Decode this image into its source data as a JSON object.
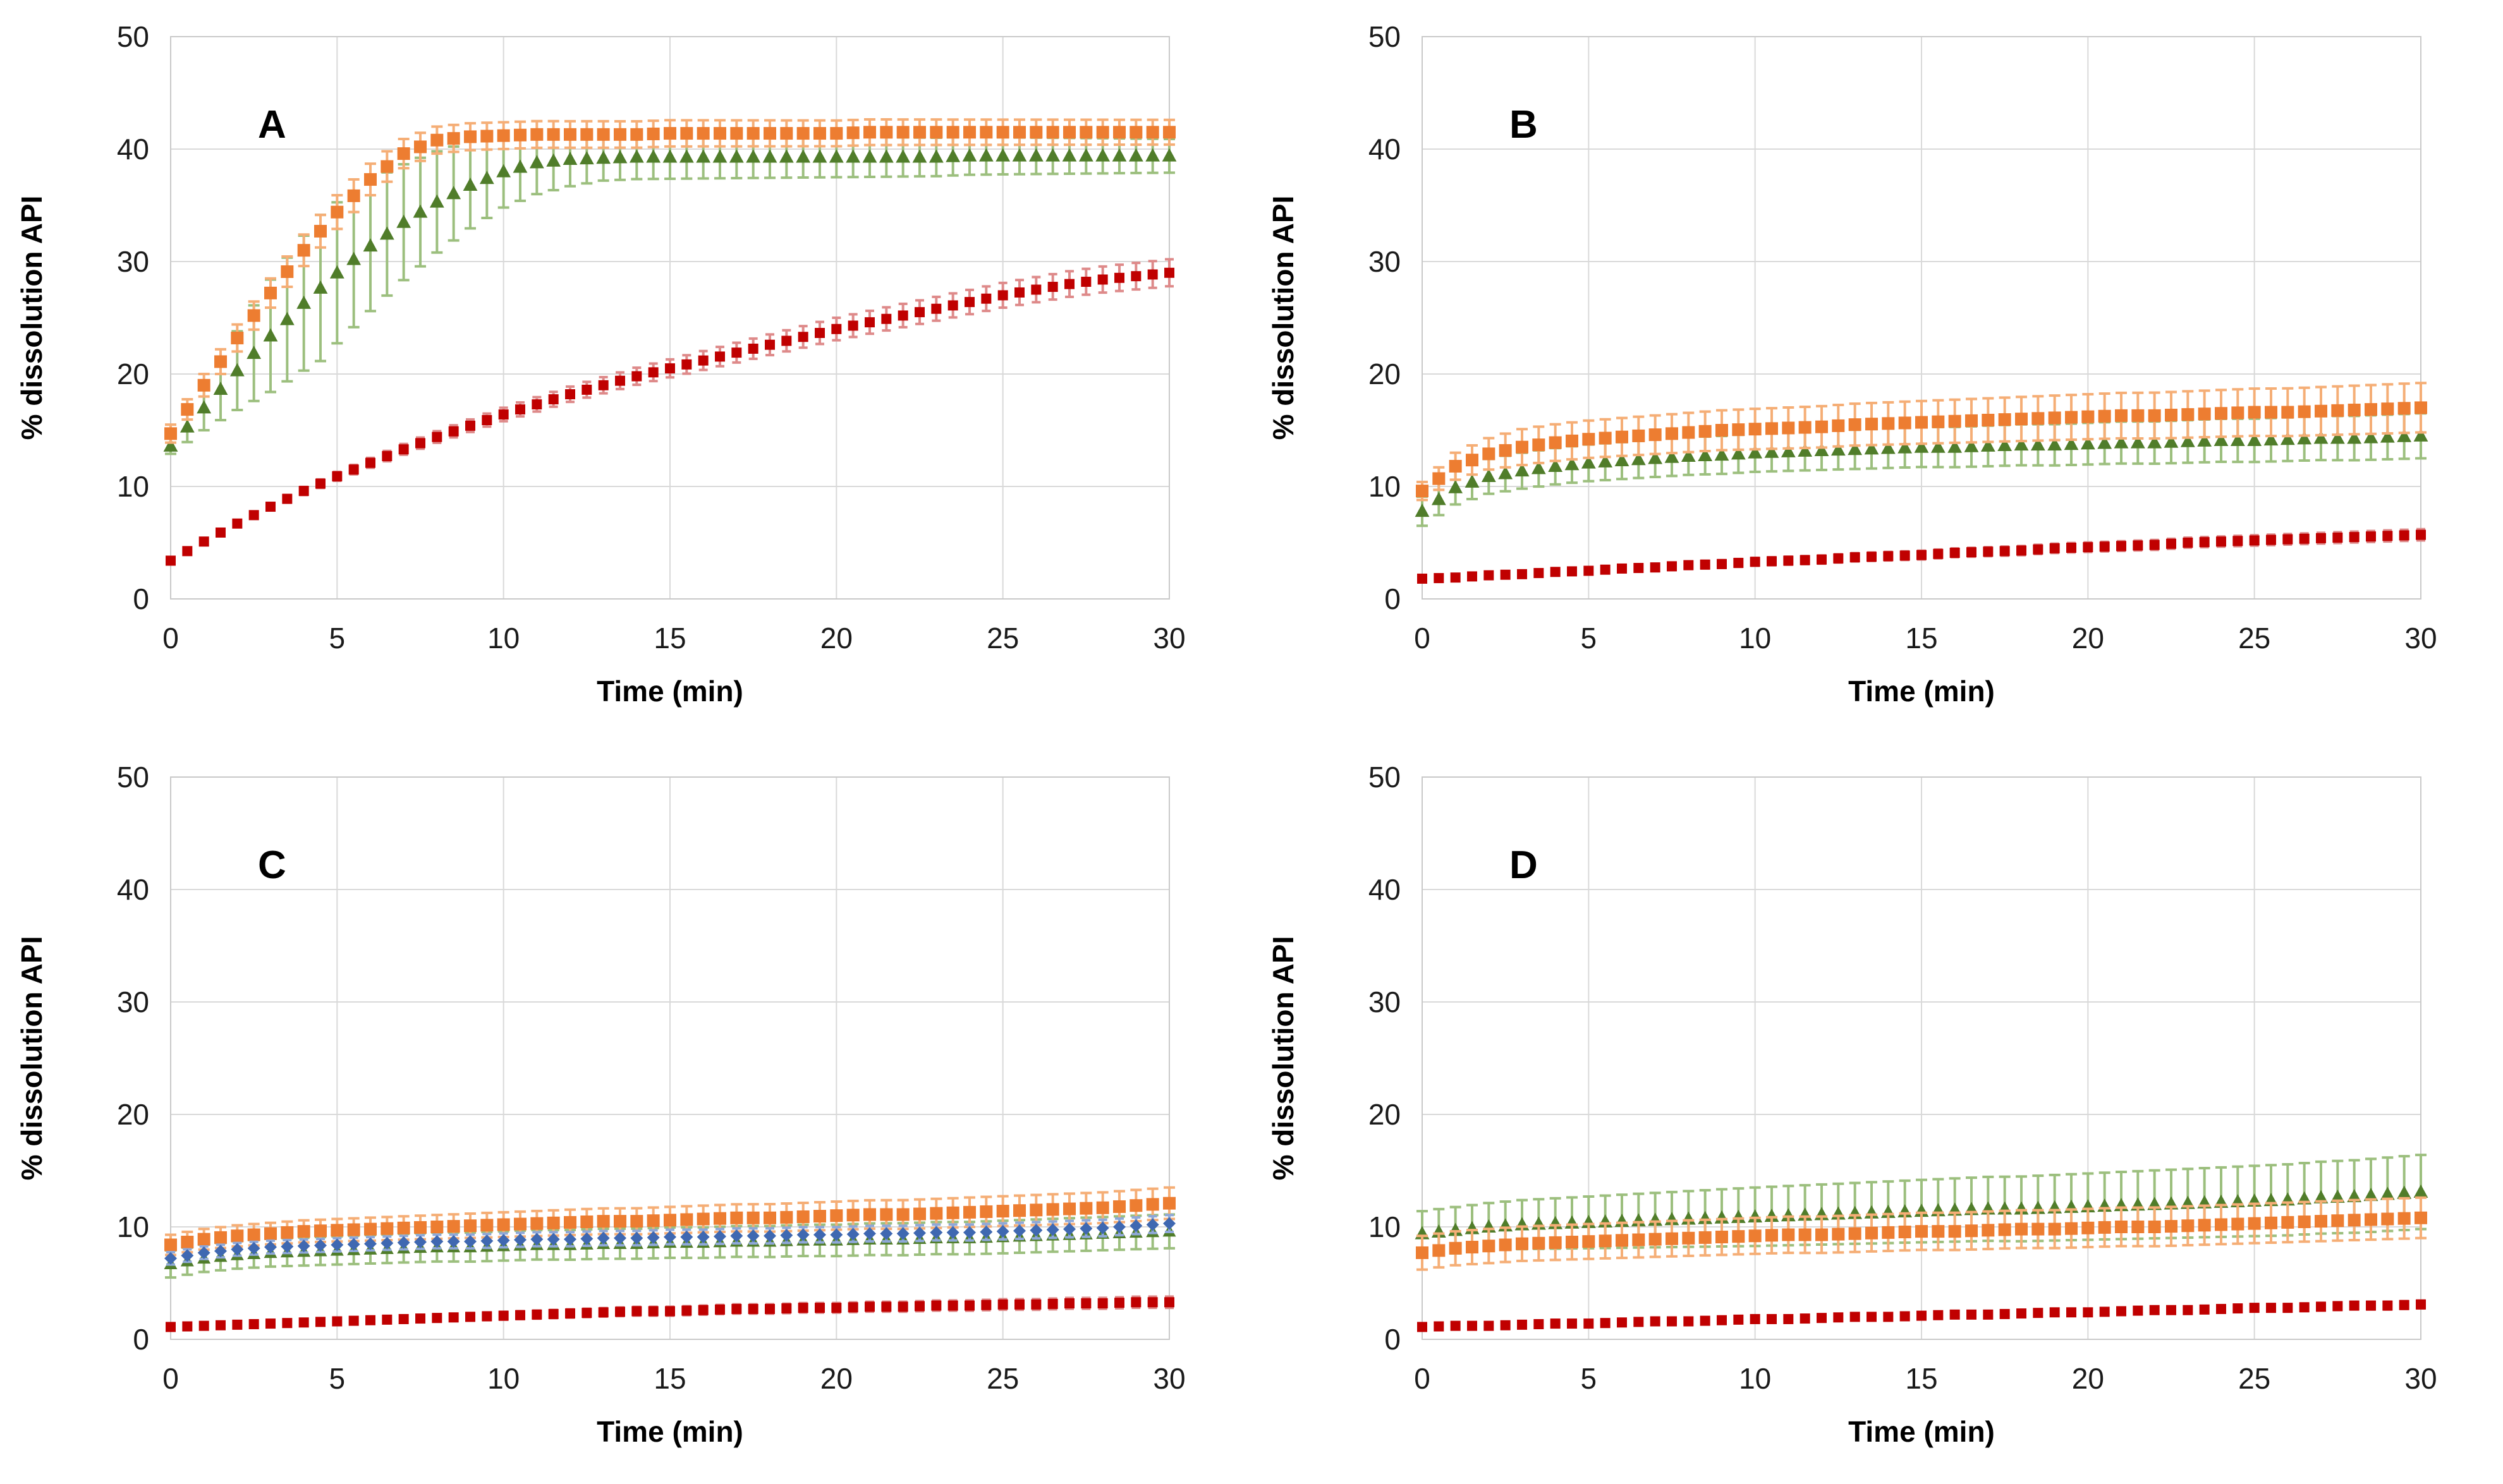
{
  "figure": {
    "background": "#FFFFFF",
    "grid_color": "#D9D9D9",
    "border_color": "#C9C9C9",
    "tick_text_color": "#1A1A1A"
  },
  "chart_data": [
    {
      "type": "scatter",
      "panel_label": "A",
      "xlabel": "Time (min)",
      "ylabel": "% dissolution API",
      "x_range": [
        0,
        30
      ],
      "y_range": [
        0,
        50
      ],
      "x_ticks": [
        0,
        5,
        10,
        15,
        20,
        25,
        30
      ],
      "y_ticks": [
        0,
        10,
        20,
        30,
        40,
        50
      ],
      "grid": true,
      "legend": "none",
      "substep": 2,
      "series": [
        {
          "name": "green-triangles",
          "marker": "triangle",
          "color": "#507D2A",
          "err_color": "#9CBF7E",
          "marker_size": 12,
          "cap": 9,
          "x_start": 0,
          "x_step": 1,
          "y": [
            13.6,
            17.0,
            20.3,
            23.4,
            26.3,
            29.0,
            31.4,
            33.5,
            35.3,
            36.8,
            38.0,
            38.8,
            39.1,
            39.2,
            39.3,
            39.3,
            39.3,
            39.3,
            39.3,
            39.3,
            39.3,
            39.3,
            39.3,
            39.3,
            39.4,
            39.4,
            39.4,
            39.4,
            39.4,
            39.4,
            39.4
          ],
          "err": {
            "t": [
              0,
              1,
              2,
              3,
              4.5,
              6,
              8,
              10,
              13,
              20,
              30
            ],
            "v": [
              0.7,
              2.0,
              3.5,
              5.0,
              6.5,
              5.8,
              4.5,
              3.2,
              2.0,
              1.8,
              1.5
            ]
          }
        },
        {
          "name": "orange-squares",
          "marker": "square",
          "color": "#ED7D31",
          "err_color": "#F5AE76",
          "marker_size": 10,
          "cap": 9,
          "x_start": 0,
          "x_step": 1,
          "y": [
            14.7,
            19.0,
            23.2,
            27.2,
            31.0,
            34.4,
            37.3,
            39.6,
            40.8,
            41.1,
            41.2,
            41.3,
            41.3,
            41.3,
            41.3,
            41.4,
            41.4,
            41.4,
            41.4,
            41.4,
            41.4,
            41.5,
            41.5,
            41.5,
            41.5,
            41.5,
            41.5,
            41.5,
            41.5,
            41.5,
            41.5
          ],
          "err": {
            "t": [
              0,
              2,
              5,
              8,
              30
            ],
            "v": [
              0.8,
              1.2,
              1.5,
              1.2,
              1.1
            ]
          }
        },
        {
          "name": "red-squares",
          "marker": "square",
          "color": "#C00000",
          "err_color": "#DE8A8A",
          "marker_size": 8,
          "cap": 7,
          "x_start": 0,
          "x_step": 1,
          "y": [
            3.4,
            5.1,
            6.7,
            8.2,
            9.6,
            10.9,
            12.1,
            13.3,
            14.4,
            15.4,
            16.4,
            17.3,
            18.2,
            19.0,
            19.8,
            20.5,
            21.2,
            21.9,
            22.6,
            23.3,
            24.0,
            24.6,
            25.2,
            25.8,
            26.4,
            27.0,
            27.5,
            28.0,
            28.4,
            28.7,
            29.0
          ],
          "err": {
            "t": [
              0,
              5,
              10,
              15,
              20,
              25,
              30
            ],
            "v": [
              0.2,
              0.4,
              0.6,
              0.8,
              1.0,
              1.1,
              1.2
            ]
          }
        }
      ]
    },
    {
      "type": "scatter",
      "panel_label": "B",
      "xlabel": "Time (min)",
      "ylabel": "% dissolution API",
      "x_range": [
        0,
        30
      ],
      "y_range": [
        0,
        50
      ],
      "x_ticks": [
        0,
        5,
        10,
        15,
        20,
        25,
        30
      ],
      "y_ticks": [
        0,
        10,
        20,
        30,
        40,
        50
      ],
      "grid": true,
      "legend": "none",
      "substep": 2,
      "series": [
        {
          "name": "green-triangles",
          "marker": "triangle",
          "color": "#507D2A",
          "err_color": "#9CBF7E",
          "marker_size": 12,
          "cap": 9,
          "x_start": 0,
          "x_step": 1,
          "y": [
            7.8,
            9.9,
            10.9,
            11.4,
            11.8,
            12.1,
            12.3,
            12.5,
            12.7,
            12.8,
            13.0,
            13.1,
            13.2,
            13.3,
            13.4,
            13.5,
            13.5,
            13.6,
            13.7,
            13.7,
            13.8,
            13.9,
            13.9,
            14.0,
            14.1,
            14.1,
            14.2,
            14.3,
            14.3,
            14.4,
            14.5
          ],
          "err": {
            "t": [
              0,
              1,
              3,
              10,
              30
            ],
            "v": [
              1.3,
              1.5,
              1.6,
              1.7,
              2.0
            ]
          }
        },
        {
          "name": "orange-squares",
          "marker": "square",
          "color": "#ED7D31",
          "err_color": "#F5AE76",
          "marker_size": 10,
          "cap": 9,
          "x_start": 0,
          "x_step": 1,
          "y": [
            9.6,
            11.8,
            12.9,
            13.5,
            13.9,
            14.2,
            14.4,
            14.6,
            14.8,
            15.0,
            15.1,
            15.2,
            15.3,
            15.5,
            15.6,
            15.7,
            15.8,
            15.9,
            16.0,
            16.1,
            16.2,
            16.3,
            16.3,
            16.4,
            16.5,
            16.6,
            16.6,
            16.7,
            16.8,
            16.9,
            17.0
          ],
          "err": {
            "t": [
              0,
              1,
              3,
              10,
              20,
              30
            ],
            "v": [
              0.8,
              1.2,
              1.6,
              1.8,
              2.0,
              2.2
            ]
          }
        },
        {
          "name": "red-squares",
          "marker": "square",
          "color": "#C00000",
          "err_color": "#DE8A8A",
          "marker_size": 8,
          "cap": 7,
          "x_start": 0,
          "x_step": 1,
          "y": [
            1.8,
            1.9,
            2.1,
            2.2,
            2.4,
            2.5,
            2.7,
            2.8,
            3.0,
            3.1,
            3.3,
            3.4,
            3.5,
            3.7,
            3.8,
            3.9,
            4.1,
            4.2,
            4.3,
            4.5,
            4.6,
            4.7,
            4.8,
            5.0,
            5.1,
            5.2,
            5.3,
            5.4,
            5.5,
            5.6,
            5.7
          ],
          "err": {
            "t": [
              0,
              10,
              30
            ],
            "v": [
              0.3,
              0.35,
              0.5
            ]
          }
        }
      ]
    },
    {
      "type": "scatter",
      "panel_label": "C",
      "xlabel": "Time (min)",
      "ylabel": "% dissolution API",
      "x_range": [
        0,
        30
      ],
      "y_range": [
        0,
        50
      ],
      "x_ticks": [
        0,
        5,
        10,
        15,
        20,
        25,
        30
      ],
      "y_ticks": [
        0,
        10,
        20,
        30,
        40,
        50
      ],
      "grid": true,
      "legend": "none",
      "substep": 2,
      "series": [
        {
          "name": "green-triangles",
          "marker": "triangle",
          "color": "#507D2A",
          "err_color": "#9CBF7E",
          "marker_size": 11,
          "cap": 9,
          "x_start": 0,
          "x_step": 1,
          "y": [
            6.7,
            7.2,
            7.5,
            7.7,
            7.8,
            7.9,
            8.0,
            8.1,
            8.2,
            8.2,
            8.3,
            8.4,
            8.4,
            8.5,
            8.5,
            8.6,
            8.6,
            8.7,
            8.7,
            8.8,
            8.8,
            8.9,
            8.9,
            9.0,
            9.0,
            9.1,
            9.2,
            9.3,
            9.4,
            9.5,
            9.6
          ],
          "err": {
            "t": [
              0,
              10,
              30
            ],
            "v": [
              1.2,
              1.3,
              1.5
            ]
          }
        },
        {
          "name": "orange-squares",
          "marker": "square",
          "color": "#ED7D31",
          "err_color": "#F5AE76",
          "marker_size": 10,
          "cap": 9,
          "x_start": 0,
          "x_step": 1,
          "y": [
            8.4,
            8.9,
            9.2,
            9.4,
            9.6,
            9.7,
            9.8,
            9.9,
            10.0,
            10.1,
            10.2,
            10.3,
            10.4,
            10.5,
            10.5,
            10.6,
            10.7,
            10.8,
            10.8,
            10.9,
            11.0,
            11.1,
            11.1,
            11.2,
            11.3,
            11.4,
            11.5,
            11.6,
            11.7,
            11.9,
            12.1
          ],
          "err": {
            "t": [
              0,
              10,
              30
            ],
            "v": [
              0.9,
              1.1,
              1.4
            ]
          }
        },
        {
          "name": "blue-diamonds",
          "marker": "diamond",
          "color": "#3F68B1",
          "err_color": "#8FA8D8",
          "marker_size": 10,
          "cap": 7,
          "x_start": 0,
          "x_step": 1,
          "y": [
            7.2,
            7.7,
            8.0,
            8.2,
            8.3,
            8.4,
            8.5,
            8.6,
            8.7,
            8.7,
            8.8,
            8.9,
            8.9,
            9.0,
            9.0,
            9.1,
            9.1,
            9.2,
            9.2,
            9.3,
            9.3,
            9.4,
            9.4,
            9.5,
            9.5,
            9.6,
            9.7,
            9.8,
            9.9,
            10.1,
            10.3
          ],
          "err": {
            "t": [
              0,
              30
            ],
            "v": [
              0.55,
              0.75
            ]
          }
        },
        {
          "name": "red-squares",
          "marker": "square",
          "color": "#C00000",
          "err_color": "#DE8A8A",
          "marker_size": 8,
          "cap": 7,
          "x_start": 0,
          "x_step": 1,
          "y": [
            1.1,
            1.2,
            1.3,
            1.4,
            1.5,
            1.6,
            1.7,
            1.8,
            1.9,
            2.0,
            2.1,
            2.2,
            2.3,
            2.4,
            2.5,
            2.5,
            2.6,
            2.7,
            2.7,
            2.8,
            2.8,
            2.9,
            2.9,
            3.0,
            3.0,
            3.1,
            3.1,
            3.2,
            3.2,
            3.3,
            3.3
          ],
          "err": {
            "t": [
              0,
              15,
              30
            ],
            "v": [
              0.25,
              0.4,
              0.5
            ]
          }
        }
      ]
    },
    {
      "type": "scatter",
      "panel_label": "D",
      "xlabel": "Time (min)",
      "ylabel": "% dissolution API",
      "x_range": [
        0,
        30
      ],
      "y_range": [
        0,
        50
      ],
      "x_ticks": [
        0,
        5,
        10,
        15,
        20,
        25,
        30
      ],
      "y_ticks": [
        0,
        10,
        20,
        30,
        40,
        50
      ],
      "grid": true,
      "legend": "none",
      "substep": 2,
      "series": [
        {
          "name": "green-triangles",
          "marker": "triangle",
          "color": "#507D2A",
          "err_color": "#9CBF7E",
          "marker_size": 12,
          "cap": 9,
          "x_start": 0,
          "x_step": 1,
          "y": [
            9.4,
            9.7,
            10.0,
            10.2,
            10.3,
            10.4,
            10.5,
            10.6,
            10.7,
            10.8,
            10.9,
            11.0,
            11.1,
            11.2,
            11.3,
            11.4,
            11.5,
            11.6,
            11.6,
            11.7,
            11.8,
            11.9,
            12.0,
            12.1,
            12.2,
            12.3,
            12.4,
            12.6,
            12.7,
            12.9,
            13.1
          ],
          "err": {
            "t": [
              0,
              10,
              30
            ],
            "v": [
              2.0,
              2.6,
              3.3
            ]
          }
        },
        {
          "name": "orange-squares",
          "marker": "square",
          "color": "#ED7D31",
          "err_color": "#F5AE76",
          "marker_size": 10,
          "cap": 9,
          "x_start": 0,
          "x_step": 1,
          "y": [
            7.7,
            8.1,
            8.3,
            8.5,
            8.6,
            8.7,
            8.8,
            8.9,
            9.0,
            9.1,
            9.2,
            9.3,
            9.3,
            9.4,
            9.5,
            9.6,
            9.6,
            9.7,
            9.8,
            9.8,
            9.9,
            10.0,
            10.0,
            10.1,
            10.2,
            10.3,
            10.4,
            10.5,
            10.6,
            10.7,
            10.8
          ],
          "err": {
            "t": [
              0,
              10,
              30
            ],
            "v": [
              1.5,
              1.6,
              1.8
            ]
          }
        },
        {
          "name": "red-squares",
          "marker": "square",
          "color": "#C00000",
          "err_color": "#DE8A8A",
          "marker_size": 8,
          "cap": 7,
          "x_start": 0,
          "x_step": 1,
          "y": [
            1.1,
            1.2,
            1.2,
            1.3,
            1.4,
            1.4,
            1.5,
            1.6,
            1.6,
            1.7,
            1.8,
            1.8,
            1.9,
            2.0,
            2.0,
            2.1,
            2.2,
            2.2,
            2.3,
            2.4,
            2.4,
            2.5,
            2.6,
            2.6,
            2.7,
            2.8,
            2.8,
            2.9,
            3.0,
            3.0,
            3.1
          ],
          "err": {
            "t": [
              0,
              30
            ],
            "v": [
              0.25,
              0.35
            ]
          }
        }
      ]
    }
  ]
}
